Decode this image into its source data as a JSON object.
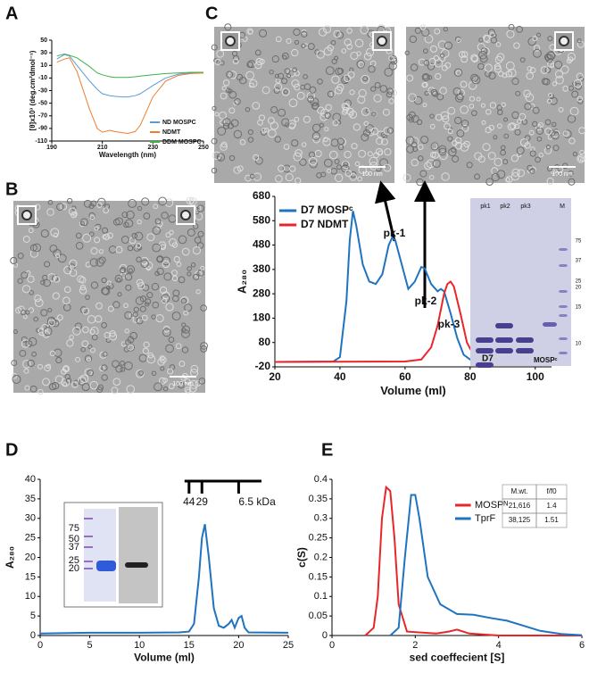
{
  "panel_labels": [
    "A",
    "B",
    "C",
    "D",
    "E"
  ],
  "scale_bars": [
    "100 nm",
    "100 nm",
    "100 nm"
  ],
  "gel_c": {
    "lanes": [
      "pk1",
      "pk2",
      "pk3",
      "M"
    ],
    "mw": [
      "75",
      "37",
      "25",
      "20",
      "15",
      "10"
    ],
    "bottom": [
      "D7",
      "MOSPᶜ"
    ]
  },
  "gel_d": {
    "mw": [
      "75",
      "50",
      "37",
      "25",
      "20"
    ]
  },
  "chart_data": [
    {
      "type": "line",
      "xlabel": "Wavelength (nm)",
      "ylabel": "[θ]x10³ (deg.cm²dmol⁻¹)",
      "xlim": [
        190,
        250
      ],
      "xticks": [
        190,
        210,
        230,
        250
      ],
      "ylim": [
        -110,
        50
      ],
      "yticks": [
        50,
        30,
        10,
        -10,
        -30,
        -50,
        -70,
        -90,
        -110
      ],
      "series": [
        {
          "name": "ND MOSPC",
          "color": "#5b9bd5",
          "x": [
            192,
            195,
            197,
            200,
            205,
            208,
            210,
            213,
            215,
            218,
            220,
            223,
            225,
            230,
            235,
            240,
            245,
            250
          ],
          "values": [
            20,
            27,
            25,
            10,
            -15,
            -28,
            -35,
            -38,
            -39,
            -40,
            -40,
            -38,
            -35,
            -22,
            -10,
            -4,
            -2,
            -2
          ]
        },
        {
          "name": "NDMT",
          "color": "#ed7d31",
          "x": [
            192,
            195,
            197,
            200,
            205,
            208,
            210,
            213,
            215,
            218,
            220,
            223,
            225,
            230,
            235,
            240,
            245,
            250
          ],
          "values": [
            15,
            20,
            22,
            0,
            -60,
            -90,
            -96,
            -93,
            -95,
            -97,
            -98,
            -95,
            -85,
            -40,
            -15,
            -6,
            -3,
            -2
          ]
        },
        {
          "name": "DDM MOSPC",
          "color": "#3cb44b",
          "x": [
            192,
            195,
            197,
            200,
            205,
            208,
            210,
            213,
            215,
            218,
            220,
            223,
            225,
            230,
            235,
            240,
            245,
            250
          ],
          "values": [
            25,
            28,
            26,
            22,
            8,
            -2,
            -5,
            -8,
            -9,
            -9,
            -9,
            -8,
            -7,
            -5,
            -3,
            -2,
            -1,
            -1
          ]
        }
      ],
      "legend": "lower-right"
    },
    {
      "type": "line",
      "xlabel": "Volume (ml)",
      "ylabel": "A₂₈₀",
      "xlim": [
        20,
        105
      ],
      "xticks": [
        20,
        40,
        60,
        80,
        100
      ],
      "ylim": [
        -20,
        680
      ],
      "yticks": [
        680,
        580,
        480,
        380,
        280,
        180,
        80,
        -20
      ],
      "annotations": [
        "pk-1",
        "pk-2",
        "pk-3"
      ],
      "series": [
        {
          "name": "D7 MOSPᶜ",
          "color": "#1f73c0",
          "x": [
            20,
            38,
            40,
            42,
            43,
            44,
            45,
            47,
            49,
            51,
            53,
            55,
            56,
            57,
            59,
            61,
            63,
            65,
            66,
            68,
            70,
            71,
            72,
            74,
            76,
            78,
            80,
            83,
            85,
            87,
            88,
            90,
            92,
            95,
            105
          ],
          "values": [
            0,
            2,
            20,
            250,
            500,
            620,
            560,
            400,
            330,
            320,
            360,
            480,
            510,
            500,
            400,
            300,
            330,
            390,
            385,
            320,
            290,
            300,
            290,
            200,
            100,
            30,
            10,
            20,
            60,
            100,
            95,
            50,
            10,
            2,
            0
          ]
        },
        {
          "name": "D7 NDMT",
          "color": "#e8262a",
          "x": [
            20,
            60,
            65,
            68,
            70,
            72,
            73,
            74,
            75,
            77,
            79,
            81,
            83,
            85,
            87,
            89,
            92,
            95,
            105
          ],
          "values": [
            0,
            2,
            10,
            60,
            150,
            280,
            320,
            330,
            310,
            200,
            80,
            30,
            20,
            25,
            30,
            25,
            5,
            0,
            0
          ]
        }
      ],
      "legend": "upper-left"
    },
    {
      "type": "line",
      "xlabel": "Volume (ml)",
      "ylabel": "A₂₈₀",
      "xlim": [
        0,
        25
      ],
      "xticks": [
        0,
        5,
        10,
        15,
        20,
        25
      ],
      "ylim": [
        0,
        40
      ],
      "yticks": [
        0,
        5,
        10,
        15,
        20,
        25,
        30,
        35,
        40
      ],
      "markers": [
        {
          "label": "44",
          "x": 15
        },
        {
          "label": "29",
          "x": 16.3
        },
        {
          "label": "6.5 kDa",
          "x": 20
        }
      ],
      "series": [
        {
          "name": null,
          "color": "#1f73c0",
          "x": [
            0,
            5,
            10,
            14,
            15,
            15.5,
            16,
            16.3,
            16.6,
            17,
            17.5,
            18,
            18.5,
            19,
            19.3,
            19.6,
            20,
            20.3,
            20.6,
            21,
            25
          ],
          "values": [
            0.5,
            0.7,
            0.7,
            0.8,
            1,
            3,
            15,
            25,
            28.5,
            20,
            7,
            2.5,
            2,
            3,
            4,
            2,
            4.5,
            5,
            2,
            0.8,
            0.7
          ]
        }
      ]
    },
    {
      "type": "line",
      "xlabel": "sed coeffecient [S]",
      "ylabel": "c(S)",
      "xlim": [
        0,
        6
      ],
      "xticks": [
        0,
        2,
        4,
        6
      ],
      "ylim": [
        0,
        0.4
      ],
      "yticks": [
        0,
        0.05,
        0.1,
        0.15,
        0.2,
        0.25,
        0.3,
        0.35,
        0.4
      ],
      "table": {
        "header": [
          "M.wt.",
          "f/f0"
        ],
        "rows": [
          [
            "21,616",
            "1.4"
          ],
          [
            "38,125",
            "1.51"
          ]
        ]
      },
      "series": [
        {
          "name": "MOSPᴺ",
          "color": "#e8262a",
          "x": [
            0.8,
            1.0,
            1.1,
            1.2,
            1.3,
            1.4,
            1.5,
            1.6,
            1.8,
            2.5,
            2.8,
            3,
            3.3,
            4,
            6
          ],
          "values": [
            0,
            0.02,
            0.1,
            0.3,
            0.38,
            0.37,
            0.25,
            0.08,
            0.01,
            0.005,
            0.01,
            0.015,
            0.005,
            0,
            0
          ]
        },
        {
          "name": "TprF",
          "color": "#1f73c0",
          "x": [
            1.4,
            1.6,
            1.75,
            1.9,
            2.0,
            2.1,
            2.3,
            2.6,
            3,
            3.4,
            3.8,
            4.2,
            4.6,
            5,
            5.5,
            6
          ],
          "values": [
            0,
            0.02,
            0.2,
            0.36,
            0.36,
            0.3,
            0.15,
            0.08,
            0.055,
            0.053,
            0.045,
            0.038,
            0.025,
            0.012,
            0.004,
            0.001
          ]
        }
      ],
      "legend": "upper-right"
    }
  ]
}
